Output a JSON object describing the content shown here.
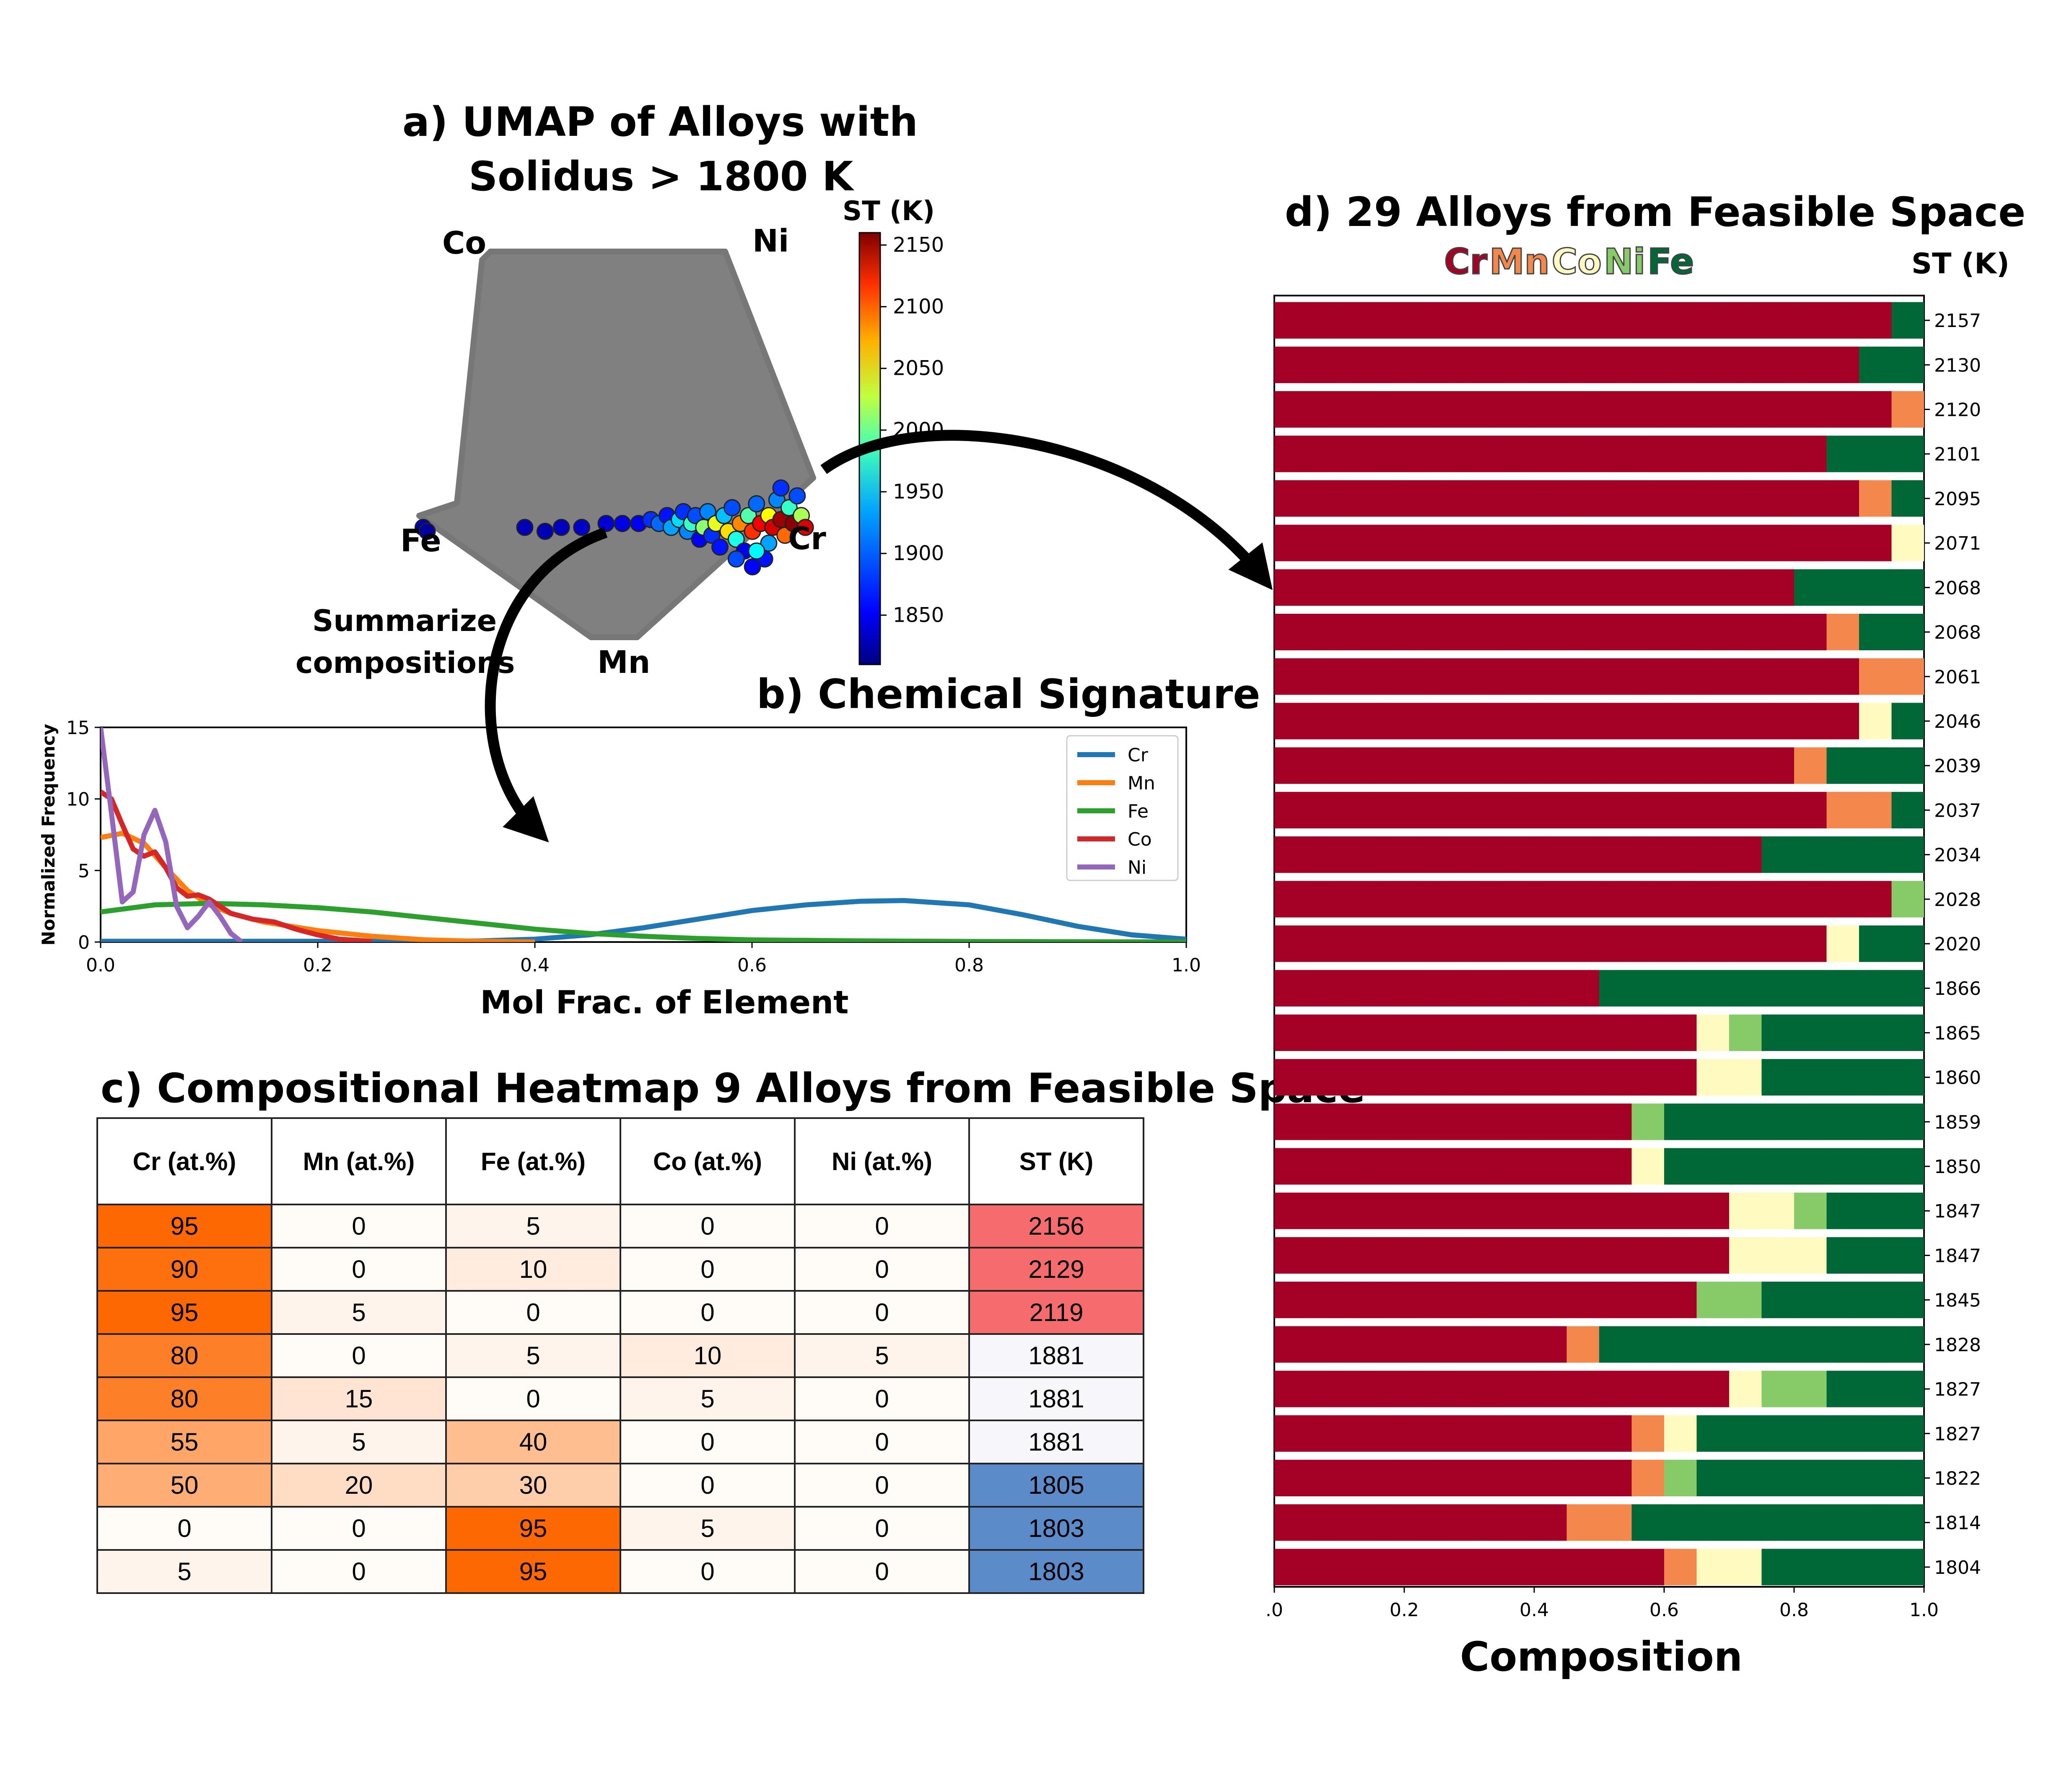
{
  "panel_a": {
    "title_line1": "a) UMAP of Alloys with",
    "title_line2": "Solidus > 1800 K",
    "vertex_labels": [
      "Co",
      "Ni",
      "Fe",
      "Cr",
      "Mn"
    ],
    "colorbar_title": "ST (K)",
    "colorbar_ticks": [
      "2150",
      "2100",
      "2050",
      "2000",
      "1950",
      "1900",
      "1850"
    ],
    "annotation_line1": "Summarize",
    "annotation_line2": "compositions"
  },
  "panel_b": {
    "title": "b) Chemical Signature"
  },
  "panel_c": {
    "title": "c) Compositional Heatmap 9 Alloys from Feasible Space",
    "headers": [
      "Cr (at.%)",
      "Mn (at.%)",
      "Fe (at.%)",
      "Co (at.%)",
      "Ni (at.%)",
      "ST (K)"
    ],
    "rows": [
      [
        "95",
        "0",
        "5",
        "0",
        "0",
        "2156"
      ],
      [
        "90",
        "0",
        "10",
        "0",
        "0",
        "2129"
      ],
      [
        "95",
        "5",
        "0",
        "0",
        "0",
        "2119"
      ],
      [
        "80",
        "0",
        "5",
        "10",
        "5",
        "1881"
      ],
      [
        "80",
        "15",
        "0",
        "5",
        "0",
        "1881"
      ],
      [
        "55",
        "5",
        "40",
        "0",
        "0",
        "1881"
      ],
      [
        "50",
        "20",
        "30",
        "0",
        "0",
        "1805"
      ],
      [
        "0",
        "0",
        "95",
        "5",
        "0",
        "1803"
      ],
      [
        "5",
        "0",
        "95",
        "0",
        "0",
        "1803"
      ]
    ]
  },
  "panel_d": {
    "title": "d) 29 Alloys from Feasible Space",
    "st_header": "ST (K)",
    "legend": [
      "Cr",
      "Mn",
      "Co",
      "Ni",
      "Fe"
    ],
    "colors": {
      "Cr": "#a50026",
      "Mn": "#f4874c",
      "Co": "#fefac0",
      "Ni": "#86cb67",
      "Fe": "#006837"
    }
  },
  "chart_data": [
    {
      "type": "scatter",
      "title": "a) UMAP of Alloys with Solidus > 1800 K",
      "background": "grey pentagon (UMAP of full composition space)",
      "colorbar": {
        "label": "ST (K)",
        "range": [
          1810,
          2160
        ],
        "colormap": "jet"
      },
      "points": [
        {
          "x": 0.02,
          "y": 0.3,
          "st": 1825
        },
        {
          "x": 0.03,
          "y": 0.29,
          "st": 1820
        },
        {
          "x": 0.27,
          "y": 0.3,
          "st": 1830
        },
        {
          "x": 0.32,
          "y": 0.29,
          "st": 1828
        },
        {
          "x": 0.36,
          "y": 0.3,
          "st": 1832
        },
        {
          "x": 0.41,
          "y": 0.3,
          "st": 1835
        },
        {
          "x": 0.47,
          "y": 0.31,
          "st": 1840
        },
        {
          "x": 0.51,
          "y": 0.31,
          "st": 1845
        },
        {
          "x": 0.55,
          "y": 0.31,
          "st": 1850
        },
        {
          "x": 0.58,
          "y": 0.32,
          "st": 1870
        },
        {
          "x": 0.6,
          "y": 0.31,
          "st": 1890
        },
        {
          "x": 0.62,
          "y": 0.33,
          "st": 1860
        },
        {
          "x": 0.63,
          "y": 0.3,
          "st": 1910
        },
        {
          "x": 0.65,
          "y": 0.32,
          "st": 1930
        },
        {
          "x": 0.66,
          "y": 0.34,
          "st": 1870
        },
        {
          "x": 0.67,
          "y": 0.29,
          "st": 1900
        },
        {
          "x": 0.68,
          "y": 0.31,
          "st": 1960
        },
        {
          "x": 0.69,
          "y": 0.33,
          "st": 1880
        },
        {
          "x": 0.7,
          "y": 0.27,
          "st": 1850
        },
        {
          "x": 0.71,
          "y": 0.3,
          "st": 1990
        },
        {
          "x": 0.72,
          "y": 0.34,
          "st": 1900
        },
        {
          "x": 0.73,
          "y": 0.28,
          "st": 1870
        },
        {
          "x": 0.74,
          "y": 0.31,
          "st": 2020
        },
        {
          "x": 0.75,
          "y": 0.25,
          "st": 1860
        },
        {
          "x": 0.76,
          "y": 0.33,
          "st": 1920
        },
        {
          "x": 0.77,
          "y": 0.29,
          "st": 2040
        },
        {
          "x": 0.78,
          "y": 0.35,
          "st": 1880
        },
        {
          "x": 0.79,
          "y": 0.27,
          "st": 1950
        },
        {
          "x": 0.8,
          "y": 0.31,
          "st": 2070
        },
        {
          "x": 0.81,
          "y": 0.24,
          "st": 1850
        },
        {
          "x": 0.82,
          "y": 0.33,
          "st": 1970
        },
        {
          "x": 0.83,
          "y": 0.29,
          "st": 2100
        },
        {
          "x": 0.84,
          "y": 0.36,
          "st": 1890
        },
        {
          "x": 0.85,
          "y": 0.31,
          "st": 2120
        },
        {
          "x": 0.86,
          "y": 0.22,
          "st": 1860
        },
        {
          "x": 0.87,
          "y": 0.33,
          "st": 2030
        },
        {
          "x": 0.88,
          "y": 0.3,
          "st": 2130
        },
        {
          "x": 0.89,
          "y": 0.37,
          "st": 1900
        },
        {
          "x": 0.9,
          "y": 0.32,
          "st": 2150
        },
        {
          "x": 0.91,
          "y": 0.28,
          "st": 2080
        },
        {
          "x": 0.92,
          "y": 0.35,
          "st": 1960
        },
        {
          "x": 0.93,
          "y": 0.31,
          "st": 2156
        },
        {
          "x": 0.94,
          "y": 0.38,
          "st": 1880
        },
        {
          "x": 0.95,
          "y": 0.33,
          "st": 2000
        },
        {
          "x": 0.96,
          "y": 0.3,
          "st": 2129
        },
        {
          "x": 0.9,
          "y": 0.4,
          "st": 1870
        },
        {
          "x": 0.87,
          "y": 0.26,
          "st": 1910
        },
        {
          "x": 0.84,
          "y": 0.24,
          "st": 1940
        },
        {
          "x": 0.79,
          "y": 0.22,
          "st": 1880
        },
        {
          "x": 0.83,
          "y": 0.2,
          "st": 1855
        }
      ]
    },
    {
      "type": "line",
      "title": "b) Chemical Signature",
      "xlabel": "Mol Frac. of Element",
      "ylabel": "Normalized Frequency",
      "xlim": [
        0,
        1
      ],
      "ylim": [
        0,
        15
      ],
      "xticks": [
        "0.0",
        "0.2",
        "0.4",
        "0.6",
        "0.8",
        "1.0"
      ],
      "yticks": [
        "0",
        "5",
        "10",
        "15"
      ],
      "legend_position": "top-right",
      "series": [
        {
          "name": "Cr",
          "color": "#1f77b4",
          "x": [
            0,
            0.05,
            0.1,
            0.15,
            0.2,
            0.25,
            0.3,
            0.35,
            0.4,
            0.45,
            0.5,
            0.55,
            0.6,
            0.65,
            0.7,
            0.74,
            0.8,
            0.85,
            0.9,
            0.95,
            1.0
          ],
          "y": [
            0.05,
            0.05,
            0.05,
            0.05,
            0.05,
            0.05,
            0.05,
            0.08,
            0.2,
            0.5,
            1.0,
            1.6,
            2.2,
            2.6,
            2.85,
            2.9,
            2.6,
            1.9,
            1.1,
            0.5,
            0.2
          ]
        },
        {
          "name": "Mn",
          "color": "#ff7f0e",
          "x": [
            0,
            0.02,
            0.04,
            0.06,
            0.08,
            0.1,
            0.12,
            0.15,
            0.2,
            0.25,
            0.3,
            0.35,
            0.4
          ],
          "y": [
            7.3,
            7.6,
            6.9,
            5.2,
            3.6,
            2.6,
            2.0,
            1.4,
            0.8,
            0.4,
            0.15,
            0.05,
            0.0
          ]
        },
        {
          "name": "Fe",
          "color": "#2ca02c",
          "x": [
            0,
            0.05,
            0.1,
            0.15,
            0.2,
            0.25,
            0.3,
            0.35,
            0.4,
            0.45,
            0.5,
            0.55,
            0.6,
            0.7,
            0.8,
            0.9,
            1.0
          ],
          "y": [
            2.1,
            2.6,
            2.7,
            2.6,
            2.4,
            2.1,
            1.7,
            1.3,
            0.9,
            0.6,
            0.4,
            0.25,
            0.15,
            0.08,
            0.04,
            0.02,
            0.01
          ]
        },
        {
          "name": "Co",
          "color": "#d62728",
          "x": [
            0,
            0.01,
            0.02,
            0.03,
            0.04,
            0.05,
            0.06,
            0.07,
            0.08,
            0.09,
            0.1,
            0.11,
            0.12,
            0.14,
            0.16,
            0.18,
            0.2,
            0.22,
            0.25
          ],
          "y": [
            10.5,
            10.0,
            8.2,
            6.5,
            6.0,
            6.3,
            5.2,
            3.8,
            3.2,
            3.3,
            3.0,
            2.5,
            2.0,
            1.6,
            1.4,
            0.9,
            0.5,
            0.2,
            0.05
          ]
        },
        {
          "name": "Ni",
          "color": "#9467bd",
          "x": [
            0,
            0.01,
            0.02,
            0.03,
            0.04,
            0.05,
            0.06,
            0.07,
            0.08,
            0.09,
            0.1,
            0.11,
            0.12,
            0.13
          ],
          "y": [
            15,
            9.0,
            2.8,
            3.5,
            7.5,
            9.2,
            7.0,
            2.5,
            1.0,
            1.8,
            2.8,
            1.8,
            0.6,
            0.0
          ]
        }
      ]
    },
    {
      "type": "table",
      "title": "c) Compositional Heatmap 9 Alloys from Feasible Space",
      "columns": [
        "Cr (at.%)",
        "Mn (at.%)",
        "Fe (at.%)",
        "Co (at.%)",
        "Ni (at.%)",
        "ST (K)"
      ],
      "rows": [
        [
          95,
          0,
          5,
          0,
          0,
          2156
        ],
        [
          90,
          0,
          10,
          0,
          0,
          2129
        ],
        [
          95,
          5,
          0,
          0,
          0,
          2119
        ],
        [
          80,
          0,
          5,
          10,
          5,
          1881
        ],
        [
          80,
          15,
          0,
          5,
          0,
          1881
        ],
        [
          55,
          5,
          40,
          0,
          0,
          1881
        ],
        [
          50,
          20,
          30,
          0,
          0,
          1805
        ],
        [
          0,
          0,
          95,
          5,
          0,
          1803
        ],
        [
          5,
          0,
          95,
          0,
          0,
          1803
        ]
      ]
    },
    {
      "type": "bar",
      "orientation": "horizontal-stacked",
      "title": "d) 29 Alloys from Feasible Space",
      "xlabel": "Composition",
      "xlim": [
        0,
        1
      ],
      "xticks": [
        ".0",
        "0.2",
        "0.4",
        "0.6",
        "0.8",
        "1.0"
      ],
      "categories": [
        "2157",
        "2130",
        "2120",
        "2101",
        "2095",
        "2071",
        "2068",
        "2068",
        "2061",
        "2046",
        "2039",
        "2037",
        "2034",
        "2028",
        "2020",
        "1866",
        "1865",
        "1860",
        "1859",
        "1850",
        "1847",
        "1847",
        "1845",
        "1828",
        "1827",
        "1827",
        "1822",
        "1814",
        "1804"
      ],
      "series": [
        {
          "name": "Cr",
          "values": [
            0.95,
            0.9,
            0.95,
            0.85,
            0.9,
            0.95,
            0.8,
            0.85,
            0.9,
            0.9,
            0.8,
            0.85,
            0.75,
            0.95,
            0.85,
            0.5,
            0.65,
            0.65,
            0.55,
            0.55,
            0.7,
            0.7,
            0.65,
            0.45,
            0.7,
            0.55,
            0.55,
            0.45,
            0.6
          ]
        },
        {
          "name": "Mn",
          "values": [
            0,
            0,
            0.05,
            0,
            0.05,
            0,
            0,
            0.05,
            0.1,
            0,
            0.05,
            0.1,
            0,
            0,
            0,
            0,
            0,
            0,
            0,
            0,
            0,
            0,
            0,
            0.05,
            0,
            0.05,
            0.05,
            0.1,
            0.05
          ]
        },
        {
          "name": "Co",
          "values": [
            0,
            0,
            0,
            0,
            0,
            0.05,
            0,
            0,
            0,
            0.05,
            0,
            0,
            0,
            0,
            0.05,
            0,
            0.05,
            0.1,
            0,
            0.05,
            0.1,
            0.15,
            0,
            0,
            0.05,
            0.05,
            0,
            0,
            0.1
          ]
        },
        {
          "name": "Ni",
          "values": [
            0,
            0,
            0,
            0,
            0,
            0,
            0,
            0,
            0,
            0,
            0,
            0,
            0,
            0.05,
            0,
            0,
            0.05,
            0,
            0.05,
            0,
            0.05,
            0,
            0.1,
            0,
            0.1,
            0,
            0.05,
            0,
            0
          ]
        },
        {
          "name": "Fe",
          "values": [
            0.05,
            0.1,
            0,
            0.15,
            0.05,
            0,
            0.2,
            0.1,
            0,
            0.05,
            0.15,
            0.05,
            0.25,
            0,
            0.1,
            0.5,
            0.25,
            0.25,
            0.4,
            0.4,
            0.15,
            0.15,
            0.25,
            0.5,
            0.15,
            0.35,
            0.35,
            0.45,
            0.25
          ]
        }
      ]
    }
  ]
}
